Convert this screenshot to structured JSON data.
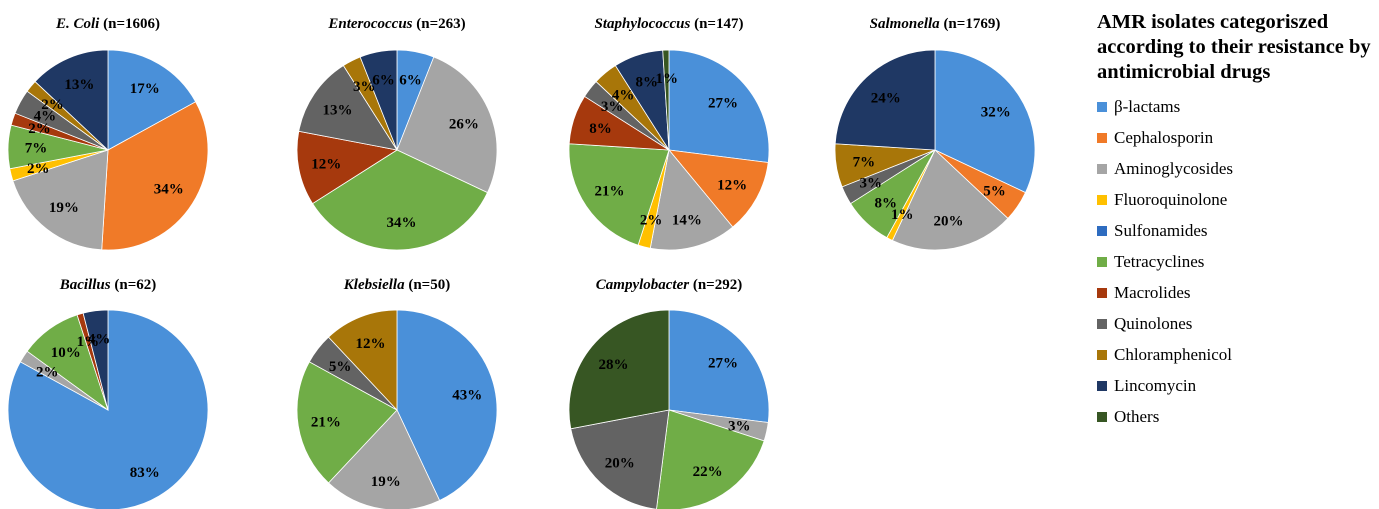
{
  "legend": {
    "title": "AMR isolates categoriszed according to their resistance by antimicrobial drugs",
    "items": [
      {
        "label": "β-lactams",
        "color": "#4a90d9"
      },
      {
        "label": "Cephalosporin",
        "color": "#f07a28"
      },
      {
        "label": "Aminoglycosides",
        "color": "#a5a5a5"
      },
      {
        "label": "Fluoroquinolone",
        "color": "#ffc000"
      },
      {
        "label": "Sulfonamides",
        "color": "#2e6cc0"
      },
      {
        "label": "Tetracyclines",
        "color": "#70ad47"
      },
      {
        "label": "Macrolides",
        "color": "#a6390d"
      },
      {
        "label": "Quinolones",
        "color": "#636363"
      },
      {
        "label": "Chloramphenicol",
        "color": "#a87609"
      },
      {
        "label": "Lincomycin",
        "color": "#1f3864"
      },
      {
        "label": "Others",
        "color": "#375623"
      }
    ]
  },
  "chart_data": [
    {
      "type": "pie",
      "title_italic": "E. Coli",
      "title_rest": " (n=1606)",
      "slices": [
        {
          "category": "β-lactams",
          "value": 17
        },
        {
          "category": "Cephalosporin",
          "value": 34
        },
        {
          "category": "Aminoglycosides",
          "value": 19
        },
        {
          "category": "Fluoroquinolone",
          "value": 2
        },
        {
          "category": "Tetracyclines",
          "value": 7
        },
        {
          "category": "Macrolides",
          "value": 2
        },
        {
          "category": "Quinolones",
          "value": 4
        },
        {
          "category": "Chloramphenicol",
          "value": 2
        },
        {
          "category": "Lincomycin",
          "value": 13
        }
      ]
    },
    {
      "type": "pie",
      "title_italic": "Enterococcus",
      "title_rest": " (n=263)",
      "slices": [
        {
          "category": "β-lactams",
          "value": 6
        },
        {
          "category": "Aminoglycosides",
          "value": 26
        },
        {
          "category": "Tetracyclines",
          "value": 34
        },
        {
          "category": "Macrolides",
          "value": 12
        },
        {
          "category": "Quinolones",
          "value": 13
        },
        {
          "category": "Chloramphenicol",
          "value": 3
        },
        {
          "category": "Lincomycin",
          "value": 6
        }
      ]
    },
    {
      "type": "pie",
      "title_italic": "Staphylococcus",
      "title_rest": " (n=147)",
      "slices": [
        {
          "category": "β-lactams",
          "value": 27
        },
        {
          "category": "Cephalosporin",
          "value": 12
        },
        {
          "category": "Aminoglycosides",
          "value": 14
        },
        {
          "category": "Fluoroquinolone",
          "value": 2
        },
        {
          "category": "Tetracyclines",
          "value": 21
        },
        {
          "category": "Macrolides",
          "value": 8
        },
        {
          "category": "Quinolones",
          "value": 3
        },
        {
          "category": "Chloramphenicol",
          "value": 4
        },
        {
          "category": "Lincomycin",
          "value": 8
        },
        {
          "category": "Others",
          "value": 1
        }
      ]
    },
    {
      "type": "pie",
      "title_italic": "Salmonella",
      "title_rest": " (n=1769)",
      "slices": [
        {
          "category": "β-lactams",
          "value": 32
        },
        {
          "category": "Cephalosporin",
          "value": 5
        },
        {
          "category": "Aminoglycosides",
          "value": 20
        },
        {
          "category": "Fluoroquinolone",
          "value": 1
        },
        {
          "category": "Tetracyclines",
          "value": 8
        },
        {
          "category": "Quinolones",
          "value": 3
        },
        {
          "category": "Chloramphenicol",
          "value": 7
        },
        {
          "category": "Lincomycin",
          "value": 24
        }
      ]
    },
    {
      "type": "pie",
      "title_italic": "Bacillus",
      "title_rest": " (n=62)",
      "slices": [
        {
          "category": "β-lactams",
          "value": 83
        },
        {
          "category": "Aminoglycosides",
          "value": 2
        },
        {
          "category": "Tetracyclines",
          "value": 10
        },
        {
          "category": "Macrolides",
          "value": 1
        },
        {
          "category": "Lincomycin",
          "value": 4
        }
      ]
    },
    {
      "type": "pie",
      "title_italic": "Klebsiella",
      "title_rest": " (n=50)",
      "slices": [
        {
          "category": "β-lactams",
          "value": 43
        },
        {
          "category": "Aminoglycosides",
          "value": 19
        },
        {
          "category": "Tetracyclines",
          "value": 21
        },
        {
          "category": "Quinolones",
          "value": 5
        },
        {
          "category": "Chloramphenicol",
          "value": 12
        }
      ]
    },
    {
      "type": "pie",
      "title_italic": "Campylobacter",
      "title_rest": " (n=292)",
      "slices": [
        {
          "category": "β-lactams",
          "value": 27
        },
        {
          "category": "Aminoglycosides",
          "value": 3
        },
        {
          "category": "Tetracyclines",
          "value": 22
        },
        {
          "category": "Quinolones",
          "value": 20
        },
        {
          "category": "Others",
          "value": 28
        }
      ]
    }
  ]
}
